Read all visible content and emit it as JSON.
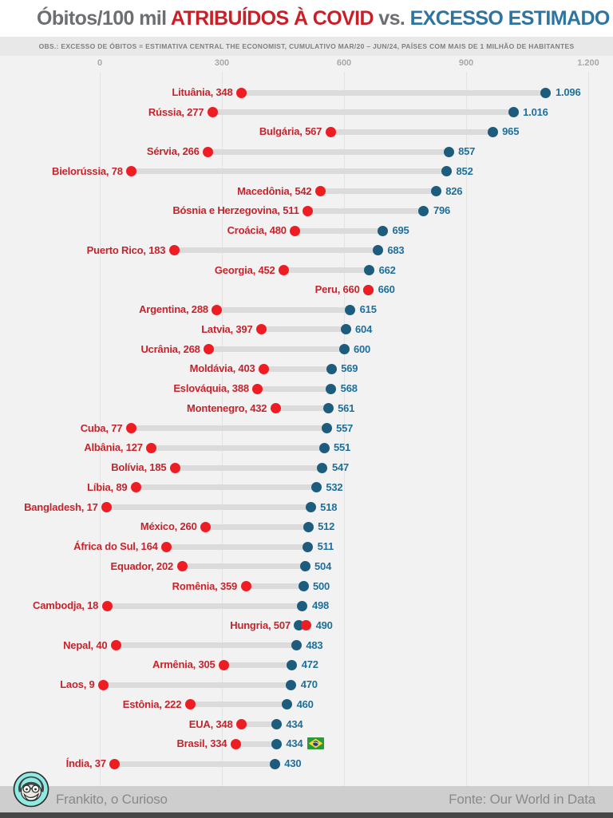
{
  "title": {
    "part1": "Óbitos/100 mil ",
    "part2": "ATRIBUÍDOS À COVID",
    "part3": " vs. ",
    "part4": "EXCESSO ESTIMADO"
  },
  "subtitle": "OBS.: EXCESSO DE ÓBITOS = ESTIMATIVA CENTRAL THE ECONOMIST, CUMULATIVO MAR/20 – JUN/24, PAÍSES COM MAIS DE 1 MILHÃO DE HABITANTES",
  "footer": {
    "author": "Frankito, o Curioso",
    "source": "Fonte: Our World in Data"
  },
  "colors": {
    "title_gray": "#6d6e71",
    "title_red": "#cb1f27",
    "title_blue": "#2e74a0",
    "covid_dot": "#ee1c23",
    "excess_dot": "#1d5c7d",
    "country_label": "#c5242c",
    "value_label": "#1e6f9c",
    "bar": "#dbdbdb",
    "chart_bg": "#f2f2f2",
    "footer_bg": "#cecece"
  },
  "chart_data": {
    "type": "dumbbell",
    "title": "Óbitos/100 mil ATRIBUÍDOS À COVID vs. EXCESSO ESTIMADO",
    "note": "Excesso de óbitos = estimativa central The Economist, cumulativo mar/20 – jun/24, países com mais de 1 milhão de habitantes",
    "x_axis": {
      "ticks": [
        "0",
        "300",
        "600",
        "900",
        "1.200"
      ],
      "values": [
        0,
        300,
        600,
        900,
        1200
      ],
      "range": [
        0,
        1200
      ],
      "grid": true
    },
    "series": [
      {
        "name": "Óbitos atribuídos à COVID",
        "color": "#ee1c23"
      },
      {
        "name": "Excesso estimado",
        "color": "#1d5c7d"
      }
    ],
    "rows": [
      {
        "country": "Lituânia",
        "covid": 348,
        "excess": 1096
      },
      {
        "country": "Rússia",
        "covid": 277,
        "excess": 1016
      },
      {
        "country": "Bulgária",
        "covid": 567,
        "excess": 965
      },
      {
        "country": "Sérvia",
        "covid": 266,
        "excess": 857
      },
      {
        "country": "Bielorússia",
        "covid": 78,
        "excess": 852
      },
      {
        "country": "Macedônia",
        "covid": 542,
        "excess": 826
      },
      {
        "country": "Bósnia e Herzegovina",
        "covid": 511,
        "excess": 796
      },
      {
        "country": "Croácia",
        "covid": 480,
        "excess": 695
      },
      {
        "country": "Puerto Rico",
        "covid": 183,
        "excess": 683
      },
      {
        "country": "Georgia",
        "covid": 452,
        "excess": 662
      },
      {
        "country": "Peru",
        "covid": 660,
        "excess": 660
      },
      {
        "country": "Argentina",
        "covid": 288,
        "excess": 615
      },
      {
        "country": "Latvia",
        "covid": 397,
        "excess": 604
      },
      {
        "country": "Ucrânia",
        "covid": 268,
        "excess": 600
      },
      {
        "country": "Moldávia",
        "covid": 403,
        "excess": 569
      },
      {
        "country": "Eslováquia",
        "covid": 388,
        "excess": 568
      },
      {
        "country": "Montenegro",
        "covid": 432,
        "excess": 561
      },
      {
        "country": "Cuba",
        "covid": 77,
        "excess": 557
      },
      {
        "country": "Albânia",
        "covid": 127,
        "excess": 551
      },
      {
        "country": "Bolívia",
        "covid": 185,
        "excess": 547
      },
      {
        "country": "Líbia",
        "covid": 89,
        "excess": 532
      },
      {
        "country": "Bangladesh",
        "covid": 17,
        "excess": 518
      },
      {
        "country": "México",
        "covid": 260,
        "excess": 512
      },
      {
        "country": "África do Sul",
        "covid": 164,
        "excess": 511
      },
      {
        "country": "Equador",
        "covid": 202,
        "excess": 504
      },
      {
        "country": "Romênia",
        "covid": 359,
        "excess": 500
      },
      {
        "country": "Cambodja",
        "covid": 18,
        "excess": 498
      },
      {
        "country": "Hungria",
        "covid": 507,
        "excess": 490
      },
      {
        "country": "Nepal",
        "covid": 40,
        "excess": 483
      },
      {
        "country": "Armênia",
        "covid": 305,
        "excess": 472
      },
      {
        "country": "Laos",
        "covid": 9,
        "excess": 470
      },
      {
        "country": "Estônia",
        "covid": 222,
        "excess": 460
      },
      {
        "country": "EUA",
        "covid": 348,
        "excess": 434
      },
      {
        "country": "Brasil",
        "covid": 334,
        "excess": 434,
        "flag": "brazil"
      },
      {
        "country": "Índia",
        "covid": 37,
        "excess": 430
      }
    ]
  }
}
